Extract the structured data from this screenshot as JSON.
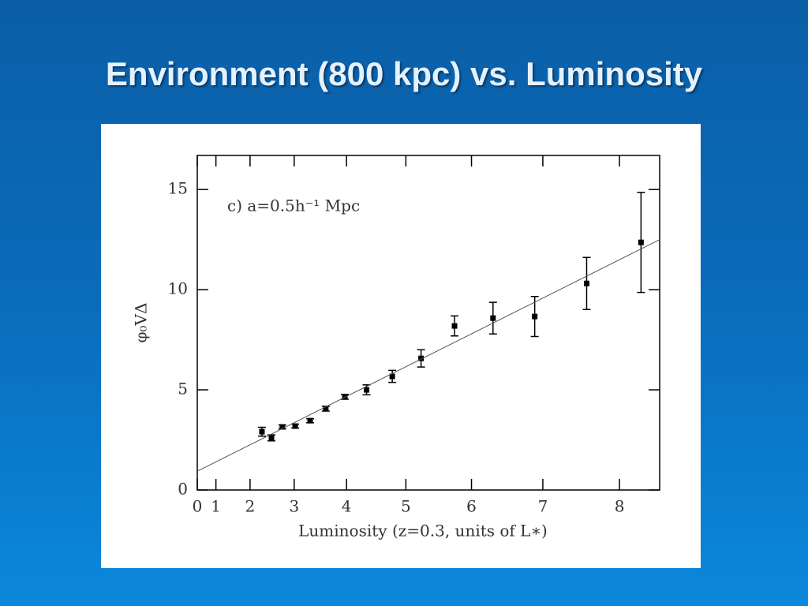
{
  "chart_data": {
    "type": "scatter",
    "title": "Environment (800 kpc) vs. Luminosity",
    "annotation": "c) a=0.5h⁻¹ Mpc",
    "x_label": "Luminosity (z=0.3, units of L∗)",
    "y_label": "φ₀VΔ",
    "xscale": "power",
    "xexponent": 1.5,
    "xlim": [
      0,
      8.5
    ],
    "xticks": [
      0,
      1,
      2,
      3,
      4,
      5,
      6,
      7,
      8
    ],
    "ylim": [
      0,
      16.7
    ],
    "yticks": [
      0,
      5,
      10,
      15
    ],
    "series": [
      {
        "name": "data",
        "color": "#000000",
        "x": [
          2.29,
          2.51,
          2.75,
          3.02,
          3.32,
          3.62,
          3.97,
          4.35,
          4.78,
          5.24,
          5.75,
          6.31,
          6.89,
          7.58,
          8.27
        ],
        "values": [
          2.91,
          2.6,
          3.15,
          3.19,
          3.46,
          4.06,
          4.65,
          5.0,
          5.67,
          6.57,
          8.19,
          8.58,
          8.66,
          10.31,
          12.36
        ],
        "errors": [
          0.22,
          0.15,
          0.1,
          0.1,
          0.1,
          0.12,
          0.12,
          0.25,
          0.3,
          0.43,
          0.5,
          0.79,
          1.0,
          1.3,
          2.5
        ]
      },
      {
        "name": "fit",
        "color": "#555555",
        "x": [
          0,
          8.5
        ],
        "values": [
          0.94,
          12.5
        ]
      }
    ]
  }
}
